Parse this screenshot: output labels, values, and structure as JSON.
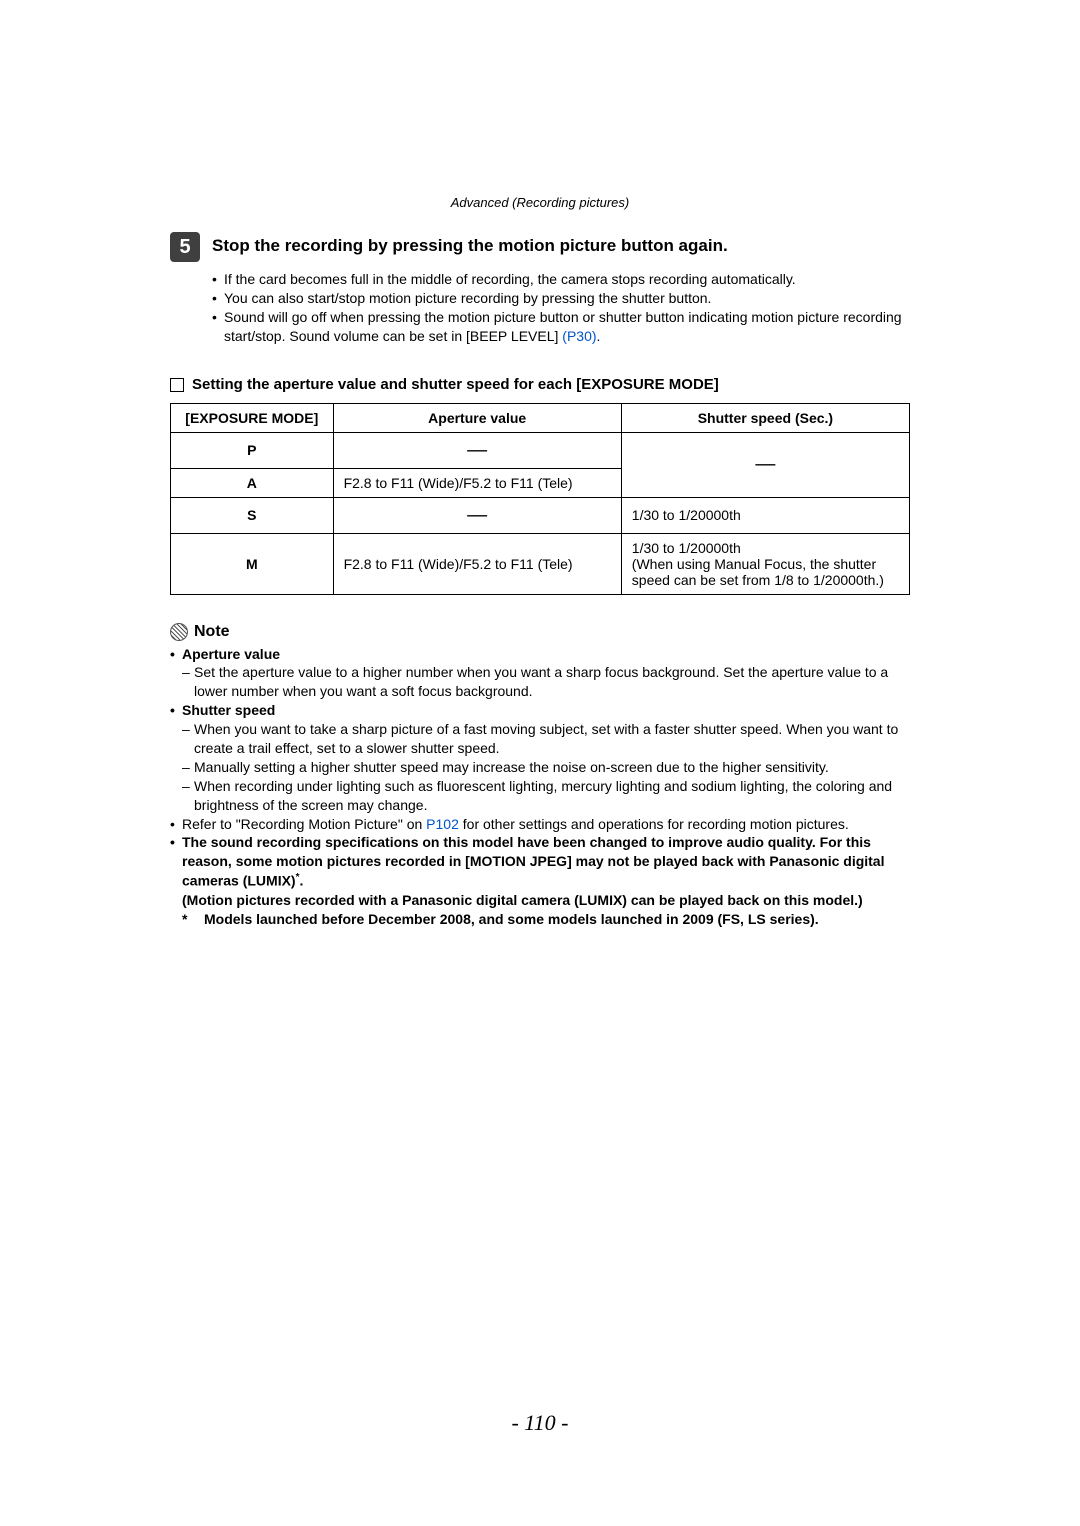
{
  "section_header": "Advanced (Recording pictures)",
  "step": {
    "number": "5",
    "title": "Stop the recording by pressing the motion picture button again.",
    "bullets": [
      "If the card becomes full in the middle of recording, the camera stops recording automatically.",
      "You can also start/stop motion picture recording by pressing the shutter button.",
      "Sound will go off when pressing the motion picture button or shutter button indicating motion picture recording start/stop. Sound volume can be set in [BEEP LEVEL] "
    ],
    "link_label": "(P30)",
    "trailing": "."
  },
  "table_heading": "Setting the aperture value and shutter speed for each [EXPOSURE MODE]",
  "table": {
    "headers": [
      "[EXPOSURE MODE]",
      "Aperture value",
      "Shutter speed (Sec.)"
    ],
    "rows": [
      {
        "mode": "P",
        "aperture": "—",
        "shutter": "—",
        "ap_dash": true,
        "sh_merge_down": true
      },
      {
        "mode": "A",
        "aperture": "F2.8 to F11 (Wide)/F5.2 to F11 (Tele)",
        "shutter": "",
        "ap_dash": false
      },
      {
        "mode": "S",
        "aperture": "—",
        "shutter": "1/30 to 1/20000th",
        "ap_dash": true
      },
      {
        "mode": "M",
        "aperture": "F2.8 to F11 (Wide)/F5.2 to F11 (Tele)",
        "shutter": "1/30 to 1/20000th\n(When using Manual Focus, the shutter speed can be set from 1/8 to 1/20000th.)",
        "ap_dash": false
      }
    ]
  },
  "note": {
    "title": "Note",
    "aperture_label": "Aperture value",
    "aperture_items": [
      "Set the aperture value to a higher number when you want a sharp focus background. Set the aperture value to a lower number when you want a soft focus background."
    ],
    "shutter_label": "Shutter speed",
    "shutter_items": [
      "When you want to take a sharp picture of a fast moving subject, set with a faster shutter speed. When you want to create a trail effect, set to a slower shutter speed.",
      "Manually setting a higher shutter speed may increase the noise on-screen due to the higher sensitivity.",
      "When recording under lighting such as fluorescent lighting, mercury lighting and sodium lighting, the coloring and brightness of the screen may change."
    ],
    "refer_pre": "Refer to \"Recording Motion Picture\" on ",
    "refer_link": "P102",
    "refer_post": " for other settings and operations for recording motion pictures.",
    "bold_block_1": "The sound recording specifications on this model have been changed to improve audio quality. For this reason, some motion pictures recorded in [MOTION JPEG] may not be played back with Panasonic digital cameras (LUMIX)",
    "sup": "*",
    "bold_block_1b": ".",
    "bold_block_2": "(Motion pictures recorded with a Panasonic digital camera (LUMIX) can be played back on this model.)",
    "footnote_mark": "*",
    "footnote": "Models launched before December 2008, and some models launched in 2009 (FS, LS series)."
  },
  "page_number": "- 110 -"
}
